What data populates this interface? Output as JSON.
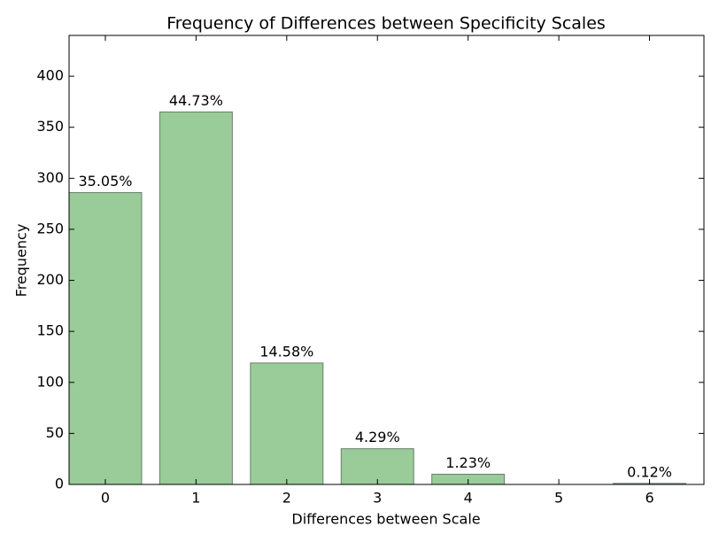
{
  "chart_data": {
    "type": "bar",
    "title": "Frequency of Differences between Specificity Scales",
    "x_label": "Differences between Scale",
    "y_label": "Frequency",
    "x": [
      0,
      1,
      2,
      3,
      4,
      5,
      6
    ],
    "values": [
      286,
      365,
      119,
      35,
      10,
      0,
      1
    ],
    "value_labels": [
      "35.05%",
      "44.73%",
      "14.58%",
      "4.29%",
      "1.23%",
      null,
      "0.12%"
    ],
    "color": "#99cc99",
    "edge_color": "#6b7d6b",
    "bar_width": 0.8,
    "xlim": [
      -0.4,
      6.6
    ],
    "xticks": [
      0,
      1,
      2,
      3,
      4,
      5,
      6
    ],
    "ylim": [
      0,
      440
    ],
    "yticks": [
      0,
      50,
      100,
      150,
      200,
      250,
      300,
      350,
      400
    ],
    "grid": false
  }
}
